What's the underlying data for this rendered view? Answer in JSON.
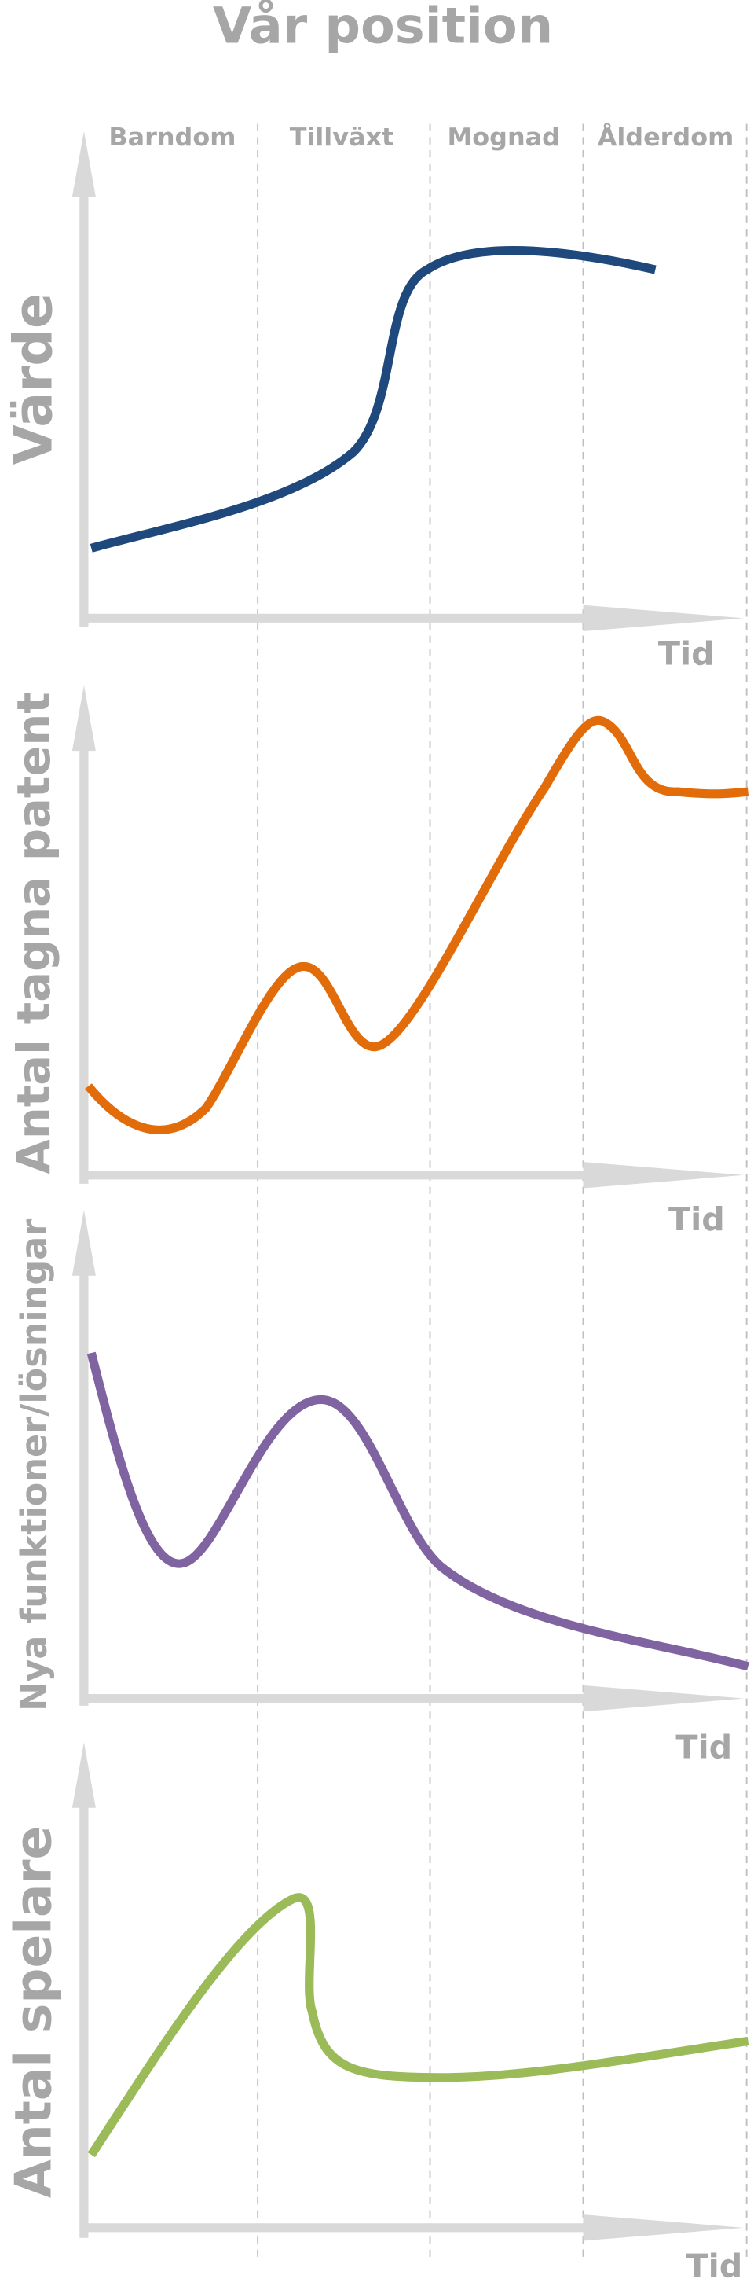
{
  "title": "Vår position",
  "phases": [
    "Barndom",
    "Tillväxt",
    "Mognad",
    "Ålderdom"
  ],
  "panels": [
    {
      "y_label": "Värde",
      "x_label": "Tid"
    },
    {
      "y_label": "Antal tagna patent",
      "x_label": "Tid"
    },
    {
      "y_label": "Nya funktioner/lösningar",
      "x_label": "Tid"
    },
    {
      "y_label": "Antal spelare",
      "x_label": "Tid"
    }
  ]
}
